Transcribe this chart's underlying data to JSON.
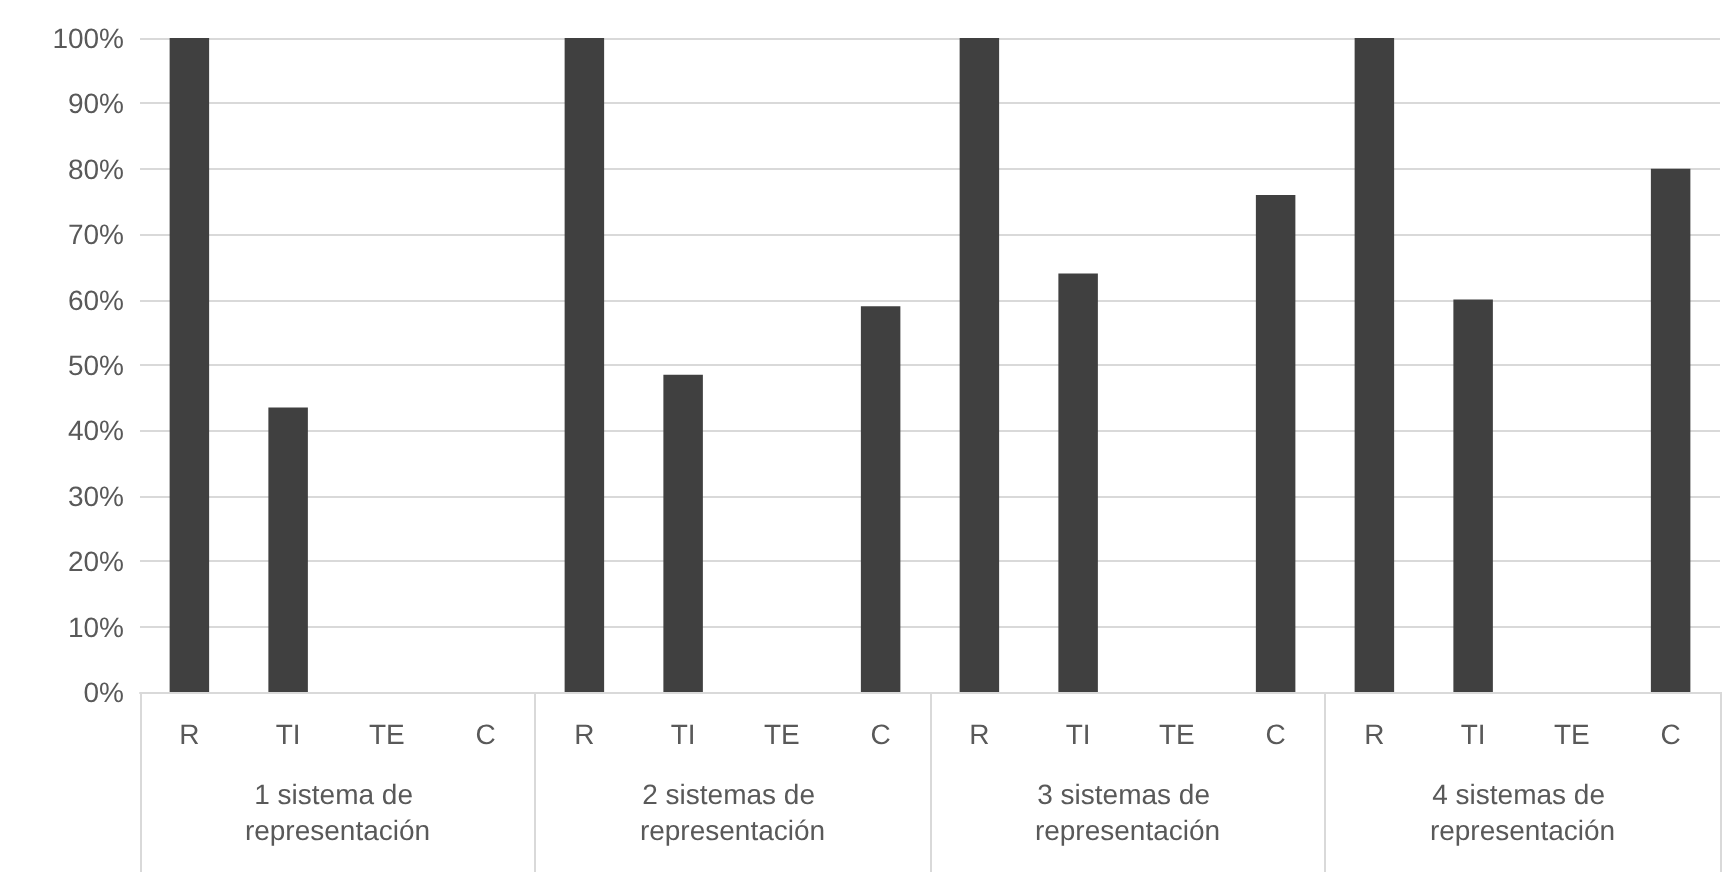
{
  "chart_data": {
    "type": "bar",
    "categories": [
      "R",
      "TI",
      "TE",
      "C",
      "R",
      "TI",
      "TE",
      "C",
      "R",
      "TI",
      "TE",
      "C",
      "R",
      "TI",
      "TE",
      "C"
    ],
    "values": [
      100,
      43.5,
      0,
      0,
      100,
      48.5,
      0,
      59,
      100,
      64,
      0,
      76,
      100,
      60,
      0,
      80
    ],
    "color": "#404040",
    "ylim": [
      0,
      100
    ],
    "yticks": [
      {
        "value": 0,
        "label": "0%"
      },
      {
        "value": 10,
        "label": "10%"
      },
      {
        "value": 20,
        "label": "20%"
      },
      {
        "value": 30,
        "label": "30%"
      },
      {
        "value": 40,
        "label": "40%"
      },
      {
        "value": 50,
        "label": "50%"
      },
      {
        "value": 60,
        "label": "60%"
      },
      {
        "value": 70,
        "label": "70%"
      },
      {
        "value": 80,
        "label": "80%"
      },
      {
        "value": 90,
        "label": "90%"
      },
      {
        "value": 100,
        "label": "100%"
      }
    ],
    "grid": "y",
    "annotations": [
      "1 sistema de representación",
      "2 sistemas de representación",
      "3 sistemas de representación",
      "4 sistemas de representación"
    ]
  }
}
